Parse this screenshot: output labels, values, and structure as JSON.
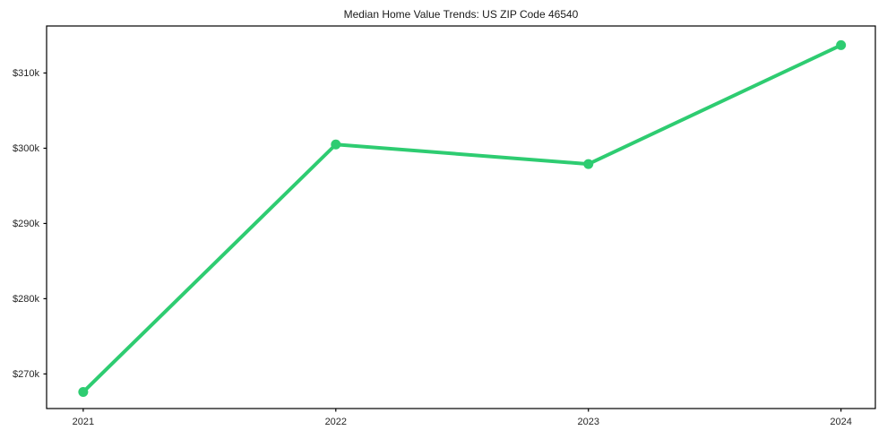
{
  "chart_data": {
    "type": "line",
    "title": "Median Home Value Trends: US ZIP Code 46540",
    "xlabel": "",
    "ylabel": "",
    "x": [
      2021,
      2022,
      2023,
      2024
    ],
    "x_tick_labels": [
      "2021",
      "2022",
      "2023",
      "2024"
    ],
    "values": [
      267600,
      300500,
      297900,
      313700
    ],
    "y_ticks": [
      270000,
      280000,
      290000,
      300000,
      310000
    ],
    "y_tick_labels": [
      "$270k",
      "$280k",
      "$290k",
      "$300k",
      "$310k"
    ],
    "xlim": [
      2020.855,
      2024.136
    ],
    "ylim": [
      265400,
      316250
    ],
    "grid": false,
    "legend": "none",
    "colors": {
      "line": "#2ecc71",
      "marker": "#2ecc71",
      "axis": "#000000",
      "text": "#262626",
      "background": "#ffffff"
    }
  }
}
